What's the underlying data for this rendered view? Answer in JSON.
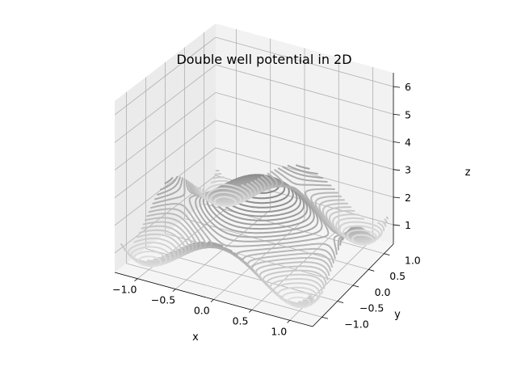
{
  "chart_data": {
    "type": "contour3d",
    "title": "Double well potential in 2D",
    "xlabel": "x",
    "ylabel": "y",
    "zlabel": "z",
    "xlim": [
      -1.3,
      1.3
    ],
    "ylim": [
      -1.3,
      1.3
    ],
    "zlim": [
      0.3,
      6.5
    ],
    "xticks": [
      -1.0,
      -0.5,
      0.0,
      0.5,
      1.0
    ],
    "xtick_labels": [
      "−1.0",
      "−0.5",
      "0.0",
      "0.5",
      "1.0"
    ],
    "yticks": [
      -1.0,
      -0.5,
      0.0,
      0.5,
      1.0
    ],
    "ytick_labels": [
      "−1.0",
      "−0.5",
      "0.0",
      "0.5",
      "1.0"
    ],
    "zticks": [
      1,
      2,
      3,
      4,
      5,
      6
    ],
    "ztick_labels": [
      "1",
      "2",
      "3",
      "4",
      "5",
      "6"
    ],
    "grid": true,
    "colormap": "gray",
    "x_range": [
      -1.25,
      1.25
    ],
    "y_range": [
      -1.25,
      1.25
    ],
    "z_min": 0.5,
    "z_max": 6.25
  }
}
